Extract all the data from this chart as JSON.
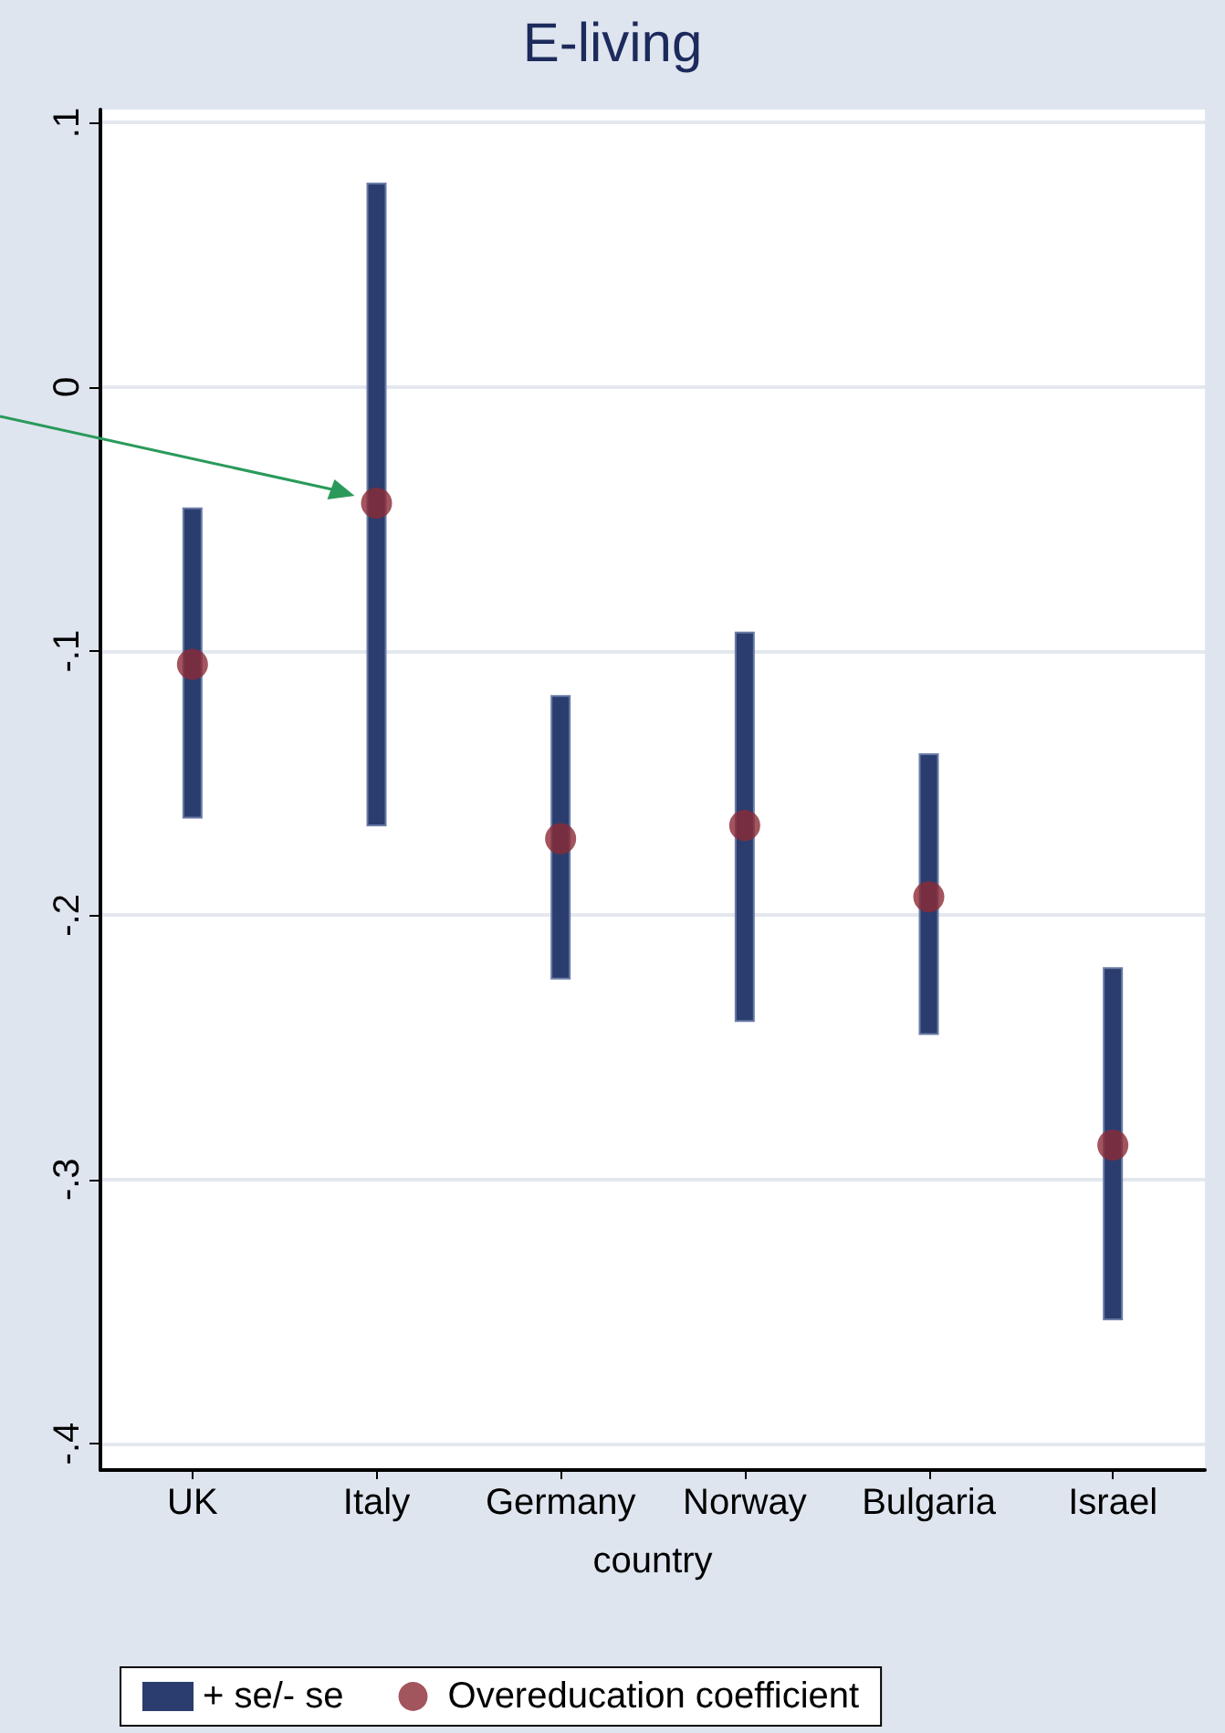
{
  "chart_data": {
    "type": "scatter",
    "title": "E-living",
    "xlabel": "country",
    "categories": [
      "UK",
      "Italy",
      "Germany",
      "Norway",
      "Bulgaria",
      "Israel"
    ],
    "series": [
      {
        "name": "+ se/- se",
        "type": "bar",
        "color": "#2b3d6e",
        "base": [
          -0.163,
          -0.166,
          -0.224,
          -0.24,
          -0.245,
          -0.353
        ],
        "values": [
          0.117,
          0.243,
          0.107,
          0.147,
          0.106,
          0.133
        ]
      },
      {
        "name": "Overeducation coefficient",
        "color": "#8c2a36",
        "values": [
          -0.105,
          -0.044,
          -0.171,
          -0.166,
          -0.193,
          -0.287
        ]
      }
    ],
    "ylim": [
      -0.41,
      0.105
    ],
    "yticks": [
      {
        "value": 0.1,
        "label": ".1"
      },
      0,
      {
        "value": -0.1,
        "label": "-.1"
      },
      {
        "value": -0.2,
        "label": "-.2"
      },
      {
        "value": -0.3,
        "label": "-.3"
      },
      {
        "value": -0.4,
        "label": "-.4"
      }
    ],
    "grid": "y",
    "legend": "bottom",
    "marker": "circle"
  }
}
